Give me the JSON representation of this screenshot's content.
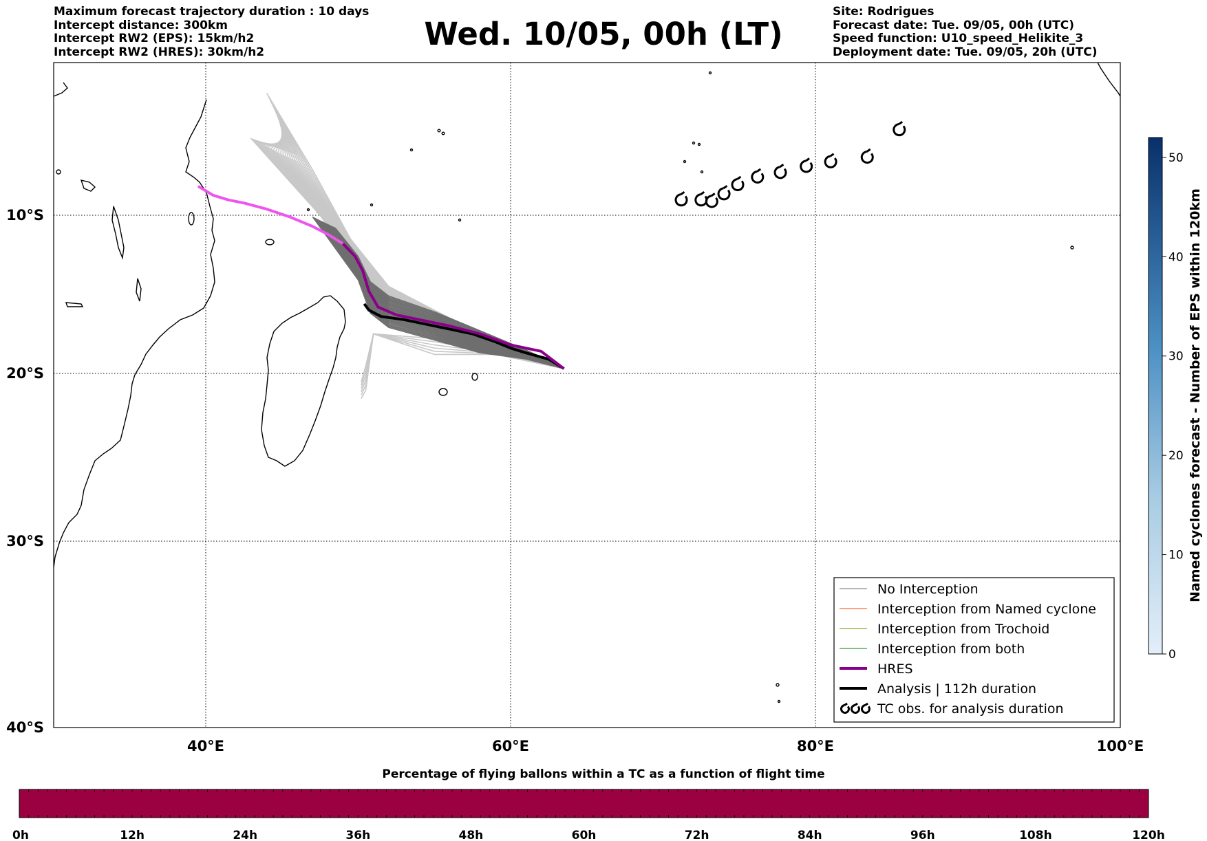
{
  "header": {
    "left_lines": [
      "Maximum forecast trajectory duration : 10 days",
      "Intercept distance: 300km",
      "Intercept RW2 (EPS):  15km/h2",
      "Intercept RW2 (HRES): 30km/h2"
    ],
    "right_lines": [
      "Site: Rodrigues",
      "Forecast date: Tue. 09/05, 00h (UTC)",
      "Speed function: U10_speed_Helikite_3",
      "Deployment date: Tue. 09/05, 20h (UTC)"
    ],
    "title": "Wed. 10/05, 00h (LT)"
  },
  "map": {
    "lon_labels": [
      "40°E",
      "60°E",
      "80°E",
      "100°E"
    ],
    "lat_labels": [
      "10°S",
      "20°S",
      "30°S",
      "40°S"
    ],
    "colors": {
      "eps_forecast": "#c8c8c8",
      "no_interception": "#6e6e6e",
      "hres": "#8b008b",
      "hres_before_deployment": "#ee55ee",
      "analysis": "#000000",
      "named_cyclone": "#ff4500",
      "trochoid": "#808000",
      "both": "#008000"
    },
    "hres_track": [
      [
        39.5,
        -8.1
      ],
      [
        40.5,
        -8.7
      ],
      [
        41.5,
        -9.0
      ],
      [
        42.5,
        -9.2
      ],
      [
        44,
        -9.6
      ],
      [
        45.5,
        -10.1
      ],
      [
        47,
        -10.7
      ],
      [
        48,
        -11.2
      ],
      [
        49,
        -11.8
      ],
      [
        49.8,
        -12.6
      ],
      [
        50.3,
        -13.5
      ],
      [
        50.7,
        -14.8
      ],
      [
        51.3,
        -15.8
      ],
      [
        52.5,
        -16.3
      ],
      [
        54,
        -16.6
      ],
      [
        56,
        -17.0
      ],
      [
        58,
        -17.5
      ],
      [
        60,
        -18.2
      ],
      [
        62,
        -18.6
      ],
      [
        63.5,
        -19.7
      ]
    ],
    "hres_pre_deployment_until_lon": 49,
    "analysis_track": [
      [
        63.5,
        -19.7
      ],
      [
        62.5,
        -19.1
      ],
      [
        61,
        -18.7
      ],
      [
        60,
        -18.4
      ],
      [
        59,
        -18.0
      ],
      [
        57.5,
        -17.5
      ],
      [
        56,
        -17.2
      ],
      [
        54.5,
        -16.9
      ],
      [
        53,
        -16.6
      ],
      [
        51.5,
        -16.4
      ],
      [
        50.7,
        -16.0
      ],
      [
        50.4,
        -15.6
      ]
    ],
    "tc_observations": [
      [
        71.2,
        -9.0
      ],
      [
        72.5,
        -9.0
      ],
      [
        73.2,
        -9.1
      ],
      [
        74.0,
        -8.6
      ],
      [
        74.9,
        -8.0
      ],
      [
        76.2,
        -7.5
      ],
      [
        77.7,
        -7.2
      ],
      [
        79.4,
        -6.8
      ],
      [
        81.0,
        -6.5
      ],
      [
        83.4,
        -6.2
      ],
      [
        85.5,
        -4.4
      ]
    ]
  },
  "legend": {
    "items": [
      {
        "label": "No Interception",
        "color": "#6e6e6e",
        "kind": "thin-line"
      },
      {
        "label": "Interception from Named cyclone",
        "color": "#ff4500",
        "kind": "thin-line"
      },
      {
        "label": "Interception from Trochoid",
        "color": "#808000",
        "kind": "thin-line"
      },
      {
        "label": "Interception from both",
        "color": "#008000",
        "kind": "thin-line"
      },
      {
        "label": "HRES",
        "color": "#8b008b",
        "kind": "thick-line"
      },
      {
        "label": "Analysis | 112h duration",
        "color": "#000000",
        "kind": "thick-line"
      },
      {
        "label": "TC obs. for analysis duration",
        "color": "#000000",
        "kind": "cyclone-symbols"
      }
    ]
  },
  "colorbar_right": {
    "label": "Named cyclones forecast - Number of EPS within 120km",
    "range": [
      0,
      52
    ],
    "ticks": [
      "0",
      "10",
      "20",
      "30",
      "40",
      "50"
    ],
    "color_low": "#e3eef9",
    "color_high": "#08306b"
  },
  "colorbar_bottom": {
    "title": "Percentage of flying ballons within a TC as a function of flight time",
    "fill_color": "#9b0040",
    "ticks": [
      "0h",
      "12h",
      "24h",
      "36h",
      "48h",
      "60h",
      "72h",
      "84h",
      "96h",
      "108h",
      "120h"
    ]
  }
}
